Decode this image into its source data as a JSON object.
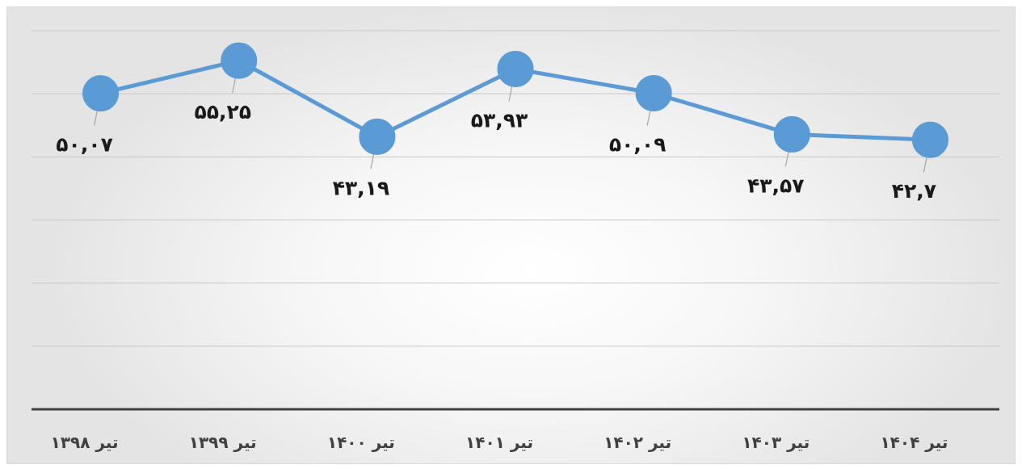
{
  "chart_data": {
    "type": "line",
    "title": "",
    "xlabel": "",
    "ylabel": "",
    "categories": [
      "تیر ۱۳۹۸",
      "تیر ۱۳۹۹",
      "تیر ۱۴۰۰",
      "تیر ۱۴۰۱",
      "تیر ۱۴۰۲",
      "تیر ۱۴۰۳",
      "تیر ۱۴۰۴"
    ],
    "series": [
      {
        "values": [
          50.07,
          55.25,
          43.19,
          53.93,
          50.09,
          43.57,
          42.7
        ],
        "labels": [
          "۵۰,۰۷",
          "۵۵,۲۵",
          "۴۳,۱۹",
          "۵۳,۹۳",
          "۵۰,۰۹",
          "۴۳,۵۷",
          "۴۲,۷"
        ],
        "color": "#5b9bd5"
      }
    ],
    "label_position": [
      "below",
      "below",
      "below",
      "below",
      "below",
      "below",
      "below"
    ],
    "ylim": [
      0,
      60
    ],
    "grid": true,
    "legend": "none"
  }
}
